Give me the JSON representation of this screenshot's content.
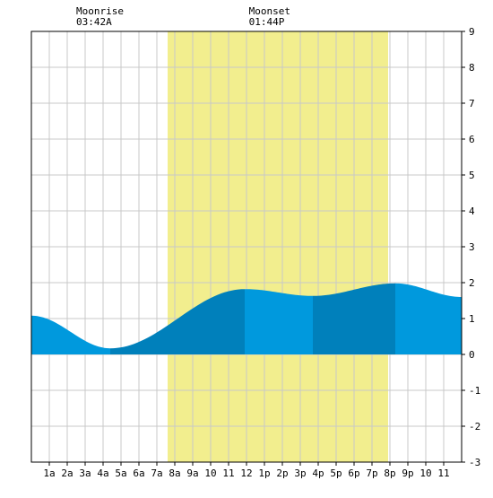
{
  "chart_data": {
    "type": "area",
    "title": "",
    "xlabel": "",
    "ylabel": "",
    "x_range_hours": [
      0,
      24
    ],
    "ylim": [
      -3,
      9
    ],
    "y_ticks": [
      -3,
      -2,
      -1,
      0,
      1,
      2,
      3,
      4,
      5,
      6,
      7,
      8,
      9
    ],
    "y_axis_side": "right",
    "grid": true,
    "x_tick_labels": [
      "1a",
      "2a",
      "3a",
      "4a",
      "5a",
      "6a",
      "7a",
      "8a",
      "9a",
      "10",
      "11",
      "12",
      "1p",
      "2p",
      "3p",
      "4p",
      "5p",
      "6p",
      "7p",
      "8p",
      "9p",
      "10",
      "11"
    ],
    "daylight": {
      "start_hour": 7.6,
      "end_hour": 19.9
    },
    "moon": {
      "rise": {
        "label": "Moonrise",
        "time": "03:42A",
        "hour": 3.7
      },
      "set": {
        "label": "Moonset",
        "time": "01:44P",
        "hour": 13.73
      }
    },
    "tide_extremes": [
      {
        "hour": 0.0,
        "height": 1.08
      },
      {
        "hour": 4.4,
        "height": 0.17
      },
      {
        "hour": 11.9,
        "height": 1.82
      },
      {
        "hour": 15.7,
        "height": 1.63
      },
      {
        "hour": 20.3,
        "height": 1.98
      },
      {
        "hour": 24.0,
        "height": 1.6
      }
    ],
    "colors": {
      "daylight": "#f2ee8e",
      "tide_light": "#0099dd",
      "tide_dark": "#0080bb",
      "grid": "#c8c8c8",
      "axis": "#000000"
    }
  }
}
